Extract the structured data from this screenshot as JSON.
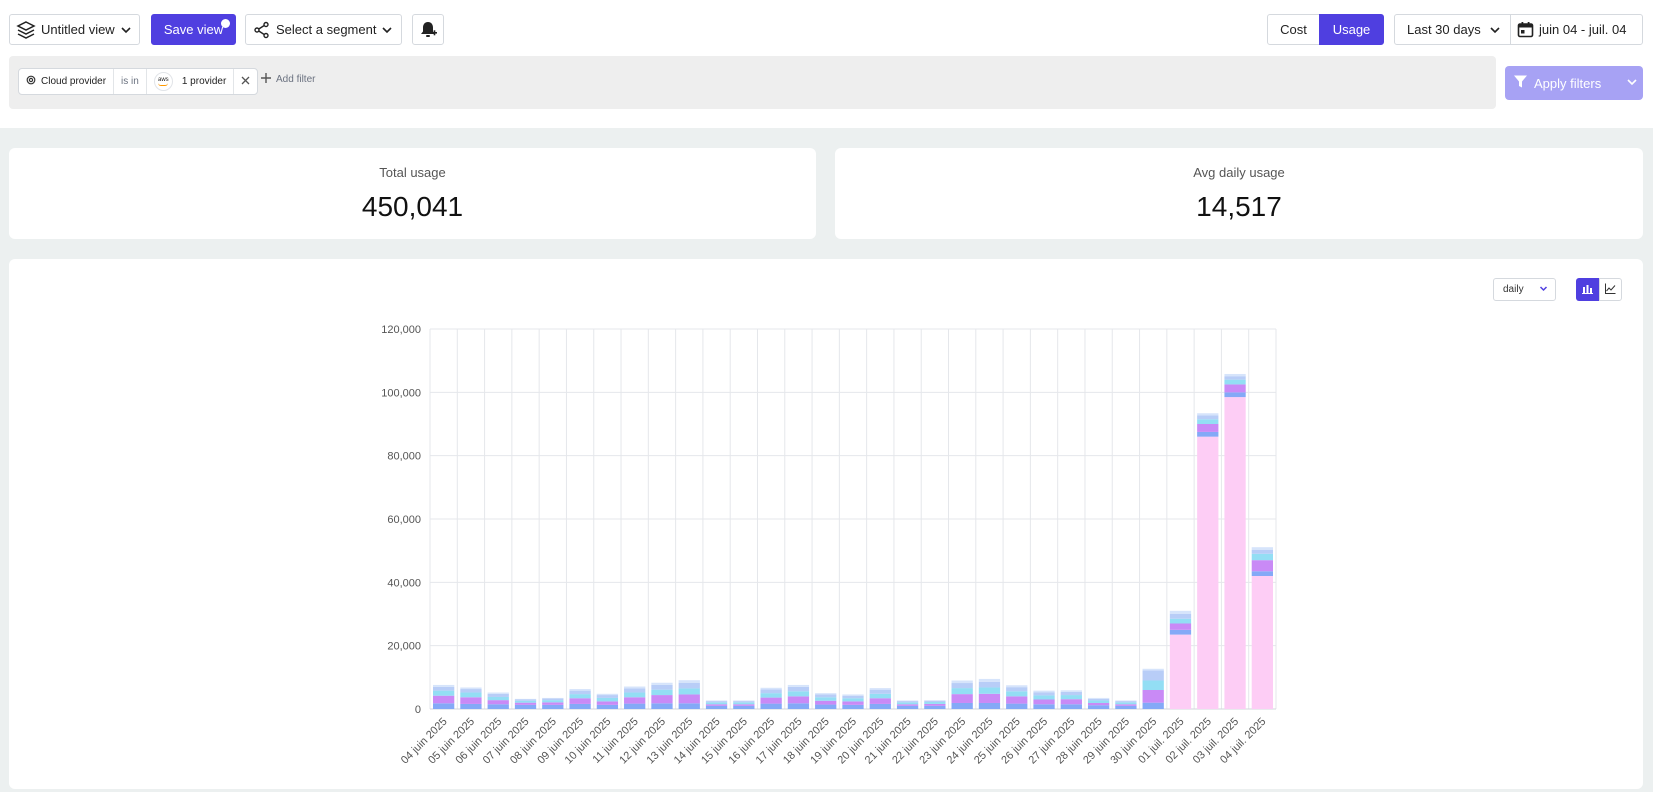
{
  "toolbar": {
    "view_label": "Untitled view",
    "save_label": "Save view",
    "segment_label": "Select a segment",
    "cost_label": "Cost",
    "usage_label": "Usage",
    "range_label": "Last 30 days",
    "date_label": "juin 04 - juil. 04",
    "active_mode": "Usage"
  },
  "filters": {
    "field": "Cloud provider",
    "operator": "is in",
    "provider_logo": "aws",
    "value": "1 provider",
    "add_label": "Add filter",
    "apply_label": "Apply filters"
  },
  "kpis": {
    "total_label": "Total usage",
    "total_value": "450,041",
    "avg_label": "Avg daily usage",
    "avg_value": "14,517"
  },
  "chart_controls": {
    "interval": "daily",
    "active_view": "bar"
  },
  "colors": {
    "accent": "#4f3fe0",
    "apply_disabled": "#a7a2f4",
    "series": [
      "#84a9f7",
      "#c98af6",
      "#93def4",
      "#b8cdf7",
      "#fdcdf5"
    ]
  },
  "chart_data": {
    "type": "bar",
    "stacked": true,
    "categories": [
      "04 juin 2025",
      "05 juin 2025",
      "06 juin 2025",
      "07 juin 2025",
      "08 juin 2025",
      "09 juin 2025",
      "10 juin 2025",
      "11 juin 2025",
      "12 juin 2025",
      "13 juin 2025",
      "14 juin 2025",
      "15 juin 2025",
      "16 juin 2025",
      "17 juin 2025",
      "18 juin 2025",
      "19 juin 2025",
      "20 juin 2025",
      "21 juin 2025",
      "22 juin 2025",
      "23 juin 2025",
      "24 juin 2025",
      "25 juin 2025",
      "26 juin 2025",
      "27 juin 2025",
      "28 juin 2025",
      "29 juin 2025",
      "30 juin 2025",
      "01 juil. 2025",
      "02 juil. 2025",
      "03 juil. 2025",
      "04 juil. 2025"
    ],
    "series": [
      {
        "values": [
          0,
          0,
          0,
          0,
          0,
          0,
          0,
          0,
          0,
          0,
          0,
          0,
          0,
          0,
          0,
          0,
          0,
          0,
          0,
          0,
          0,
          0,
          0,
          0,
          0,
          0,
          0,
          23500,
          86000,
          98500,
          42000
        ]
      },
      {
        "values": [
          1800,
          1600,
          1500,
          1300,
          1300,
          1600,
          1300,
          1700,
          1800,
          1800,
          1000,
          1000,
          1700,
          1800,
          1400,
          1300,
          1600,
          1000,
          1000,
          1900,
          1900,
          1700,
          1500,
          1500,
          1200,
          1000,
          2000,
          1500,
          1500,
          1500,
          1500
        ]
      },
      {
        "values": [
          2400,
          2100,
          1300,
          700,
          800,
          1800,
          1100,
          2000,
          2600,
          2800,
          500,
          500,
          1900,
          2200,
          1200,
          1100,
          1800,
          500,
          600,
          2800,
          2900,
          2300,
          1500,
          1600,
          700,
          500,
          4000,
          2000,
          2500,
          2500,
          3500
        ]
      },
      {
        "values": [
          1600,
          1500,
          1000,
          600,
          700,
          1300,
          1100,
          1500,
          1700,
          1900,
          600,
          600,
          1400,
          1600,
          1100,
          1000,
          1400,
          600,
          600,
          1900,
          2000,
          1600,
          1300,
          1300,
          800,
          600,
          3000,
          1500,
          1500,
          1500,
          2000
        ]
      },
      {
        "values": [
          1200,
          1100,
          1000,
          400,
          500,
          1100,
          900,
          1300,
          1500,
          1800,
          400,
          400,
          1200,
          1400,
          900,
          800,
          1300,
          400,
          400,
          1600,
          1800,
          1300,
          1000,
          1000,
          500,
          400,
          3200,
          1500,
          1200,
          1100,
          1300
        ]
      },
      {
        "values": [
          600,
          500,
          400,
          200,
          200,
          500,
          400,
          600,
          700,
          800,
          200,
          200,
          500,
          600,
          400,
          400,
          500,
          200,
          200,
          800,
          900,
          600,
          500,
          500,
          300,
          200,
          500,
          1000,
          700,
          700,
          800
        ]
      }
    ],
    "ylim": [
      0,
      120000
    ],
    "yticks": [
      0,
      20000,
      40000,
      60000,
      80000,
      100000,
      120000
    ],
    "ytick_labels": [
      "0",
      "20,000",
      "40,000",
      "60,000",
      "80,000",
      "100,000",
      "120,000"
    ],
    "series_colors": [
      "#fdcdf5",
      "#84a9f7",
      "#c98af6",
      "#93def4",
      "#b8cdf7",
      "#d6e4fb"
    ],
    "grid": true
  }
}
